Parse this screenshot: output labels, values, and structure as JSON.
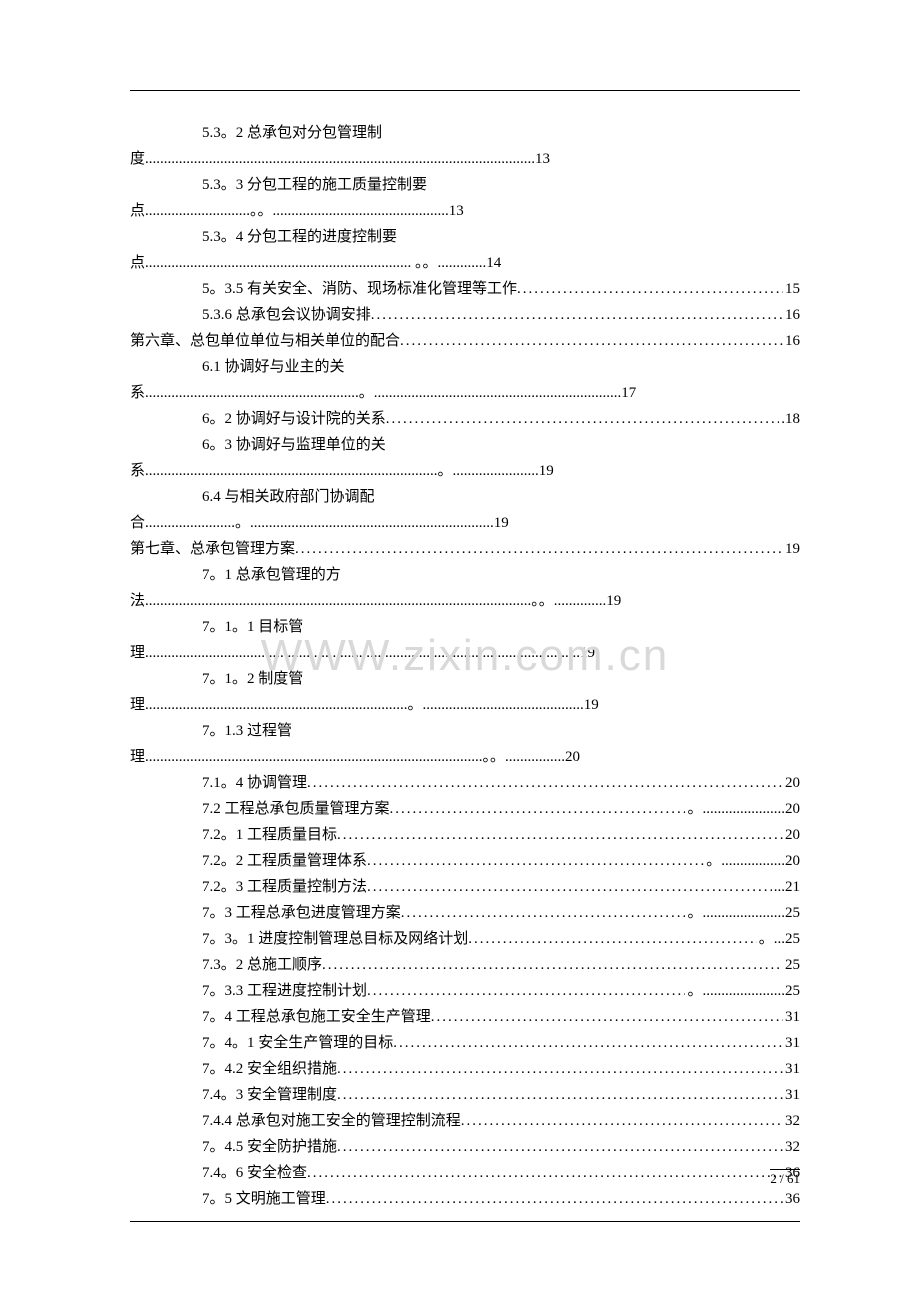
{
  "watermark": "WWW.zixin.com.cn",
  "footer": {
    "page": "2",
    "total": "61",
    "sep": "/"
  },
  "lines": [
    {
      "type": "text",
      "indent": 1,
      "text": "5.3。2  总承包对分包管理制"
    },
    {
      "type": "wrap-end",
      "indent": 0,
      "prefix": "度",
      "dots": "........................................................................................................",
      "page": "13"
    },
    {
      "type": "text",
      "indent": 1,
      "text": "5.3。3  分包工程的施工质量控制要"
    },
    {
      "type": "wrap-end",
      "indent": 0,
      "prefix": "点",
      "dots": "............................。。...............................................",
      "page": "13"
    },
    {
      "type": "text",
      "indent": 1,
      "text": "5.3。4  分包工程的进度控制要"
    },
    {
      "type": "wrap-end",
      "indent": 0,
      "prefix": "点",
      "dots": "....................................................................... 。。.............",
      "page": "14"
    },
    {
      "type": "leader",
      "indent": 1,
      "text": "5。3.5  有关安全、消防、现场标准化管理等工作",
      "page": "15"
    },
    {
      "type": "leader",
      "indent": 1,
      "text": "5.3.6  总承包会议协调安排",
      "page": "16"
    },
    {
      "type": "leader",
      "indent": 0,
      "text": "第六章、总包单位单位与相关单位的配合",
      "page": "16"
    },
    {
      "type": "text",
      "indent": 1,
      "text": "6.1  协调好与业主的关"
    },
    {
      "type": "wrap-end",
      "indent": 0,
      "prefix": "系",
      "dots": ".........................................................。..................................................................",
      "page": "17"
    },
    {
      "type": "leader",
      "indent": 1,
      "text": "6。2  协调好与设计院的关系",
      "dots_suffix": ".",
      "page": "18"
    },
    {
      "type": "text",
      "indent": 1,
      "text": "6。3  协调好与监理单位的关"
    },
    {
      "type": "wrap-end",
      "indent": 0,
      "prefix": "系",
      "dots": "..............................................................................。.......................",
      "page": "19"
    },
    {
      "type": "text",
      "indent": 1,
      "text": "6.4  与相关政府部门协调配"
    },
    {
      "type": "wrap-end",
      "indent": 0,
      "prefix": "合",
      "dots": "........................。.................................................................",
      "page": "19"
    },
    {
      "type": "leader",
      "indent": 0,
      "text": "第七章、总承包管理方案",
      "page": "19"
    },
    {
      "type": "text",
      "indent": 1,
      "text": "7。1  总承包管理的方"
    },
    {
      "type": "wrap-end",
      "indent": 0,
      "prefix": "法",
      "dots": ".......................................................................................................。。..............",
      "page": "19"
    },
    {
      "type": "text",
      "indent": 1,
      "text": "7。1。1  目标管"
    },
    {
      "type": "wrap-end",
      "indent": 0,
      "prefix": "理",
      "dots": "....................................................................................................................",
      "page": "19"
    },
    {
      "type": "text",
      "indent": 1,
      "text": "7。1。2  制度管"
    },
    {
      "type": "wrap-end",
      "indent": 0,
      "prefix": "理",
      "dots": "......................................................................。...........................................",
      "page": "19"
    },
    {
      "type": "text",
      "indent": 1,
      "text": "7。1.3  过程管"
    },
    {
      "type": "wrap-end",
      "indent": 0,
      "prefix": "理",
      "dots": "..........................................................................................。。................",
      "page": "20"
    },
    {
      "type": "leader",
      "indent": 1,
      "text": "7.1。4  协调管理",
      "page": "20"
    },
    {
      "type": "leader",
      "indent": 1,
      "text": "7.2  工程总承包质量管理方案",
      "dots_suffix": "。......................",
      "page": "20"
    },
    {
      "type": "leader",
      "indent": 1,
      "text": "7.2。1  工程质量目标",
      "page": "20"
    },
    {
      "type": "leader",
      "indent": 1,
      "text": "7.2。2  工程质量管理体系",
      "dots_suffix": "。.................",
      "page": "20"
    },
    {
      "type": "leader",
      "indent": 1,
      "text": "7.2。3  工程质量控制方法",
      "dots_suffix": "  ...",
      "page": "21"
    },
    {
      "type": "leader",
      "indent": 1,
      "text": "7。3  工程总承包进度管理方案",
      "dots_suffix": "。......................",
      "page": "25"
    },
    {
      "type": "leader",
      "indent": 1,
      "text": "7。3。1  进度控制管理总目标及网络计划",
      "dots_suffix": " 。...",
      "page": "25"
    },
    {
      "type": "leader",
      "indent": 1,
      "text": "7.3。2  总施工顺序",
      "page": "25"
    },
    {
      "type": "leader",
      "indent": 1,
      "text": "7。3.3  工程进度控制计划",
      "dots_suffix": "。......................",
      "page": "25"
    },
    {
      "type": "leader",
      "indent": 1,
      "text": "7。4 工程总承包施工安全生产管理",
      "page": "31"
    },
    {
      "type": "leader",
      "indent": 1,
      "text": "7。4。1  安全生产管理的目标",
      "page": "31"
    },
    {
      "type": "leader",
      "indent": 1,
      "text": "7。4.2  安全组织措施",
      "page": "31"
    },
    {
      "type": "leader",
      "indent": 1,
      "text": "7.4。3  安全管理制度",
      "page": "31"
    },
    {
      "type": "leader",
      "indent": 1,
      "text": "7.4.4  总承包对施工安全的管理控制流程",
      "page": "32"
    },
    {
      "type": "leader",
      "indent": 1,
      "text": "7。4.5  安全防护措施",
      "page": "32"
    },
    {
      "type": "leader",
      "indent": 1,
      "text": "7.4。6  安全检查",
      "page": "36"
    },
    {
      "type": "leader",
      "indent": 1,
      "text": "7。5 文明施工管理",
      "page": "36"
    }
  ]
}
